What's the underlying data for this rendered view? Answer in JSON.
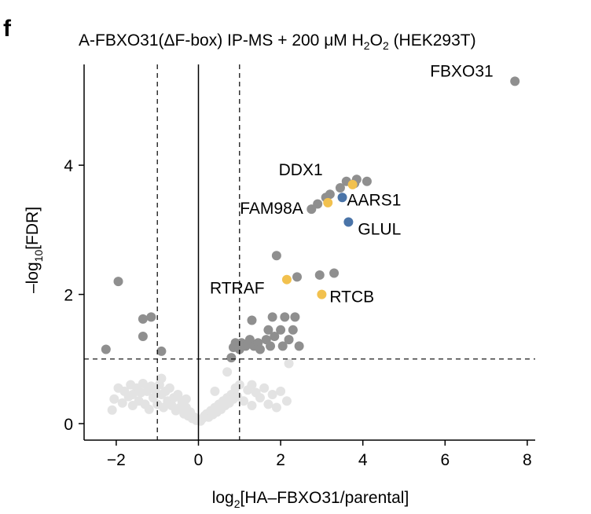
{
  "panel_label": "f",
  "title_parts": {
    "a": "A-FBXO31(ΔF-box) IP-MS + 200 μM H",
    "sub": "2",
    "b": "O",
    "sub2": "2",
    "c": " (HEK293T)"
  },
  "axes": {
    "xlabel_pre": "log",
    "xlabel_sub": "2",
    "xlabel_post": "[HA–FBXO31/parental]",
    "ylabel_pre": "–log",
    "ylabel_sub": "10",
    "ylabel_post": "[FDR]",
    "xticks": [
      "−2",
      "0",
      "2",
      "4",
      "6",
      "8"
    ],
    "yticks": [
      "0",
      "2",
      "4"
    ]
  },
  "colors": {
    "significant": "#8f8f8f",
    "nonsignificant": "#e3e3e3",
    "yellow": "#f2c14e",
    "blue": "#4a74a8"
  },
  "chart_data": {
    "type": "scatter",
    "xlim": [
      -2.8,
      8.2
    ],
    "ylim": [
      -0.1,
      5.7
    ],
    "threshold_lines": {
      "x": [
        -1,
        1
      ],
      "y": 1,
      "x_zero": 0
    },
    "grid": false,
    "nonsignificant": [
      [
        -2.1,
        0.21
      ],
      [
        -2.05,
        0.38
      ],
      [
        -1.95,
        0.55
      ],
      [
        -1.85,
        0.32
      ],
      [
        -1.8,
        0.5
      ],
      [
        -1.7,
        0.42
      ],
      [
        -1.65,
        0.6
      ],
      [
        -1.6,
        0.28
      ],
      [
        -1.5,
        0.55
      ],
      [
        -1.45,
        0.35
      ],
      [
        -1.4,
        0.48
      ],
      [
        -1.35,
        0.62
      ],
      [
        -1.3,
        0.3
      ],
      [
        -1.25,
        0.5
      ],
      [
        -1.2,
        0.22
      ],
      [
        -1.15,
        0.58
      ],
      [
        -1.1,
        0.4
      ],
      [
        -1.05,
        0.52
      ],
      [
        -1.0,
        0.3
      ],
      [
        -0.95,
        0.6
      ],
      [
        -0.9,
        0.45
      ],
      [
        -0.85,
        0.25
      ],
      [
        -0.8,
        0.5
      ],
      [
        -0.75,
        0.35
      ],
      [
        -0.7,
        0.55
      ],
      [
        -0.65,
        0.28
      ],
      [
        -0.6,
        0.4
      ],
      [
        -0.55,
        0.2
      ],
      [
        -0.5,
        0.45
      ],
      [
        -0.45,
        0.25
      ],
      [
        -0.4,
        0.35
      ],
      [
        -0.35,
        0.15
      ],
      [
        -0.3,
        0.25
      ],
      [
        -0.25,
        0.12
      ],
      [
        -0.2,
        0.18
      ],
      [
        -0.15,
        0.08
      ],
      [
        -0.1,
        0.1
      ],
      [
        -0.05,
        0.05
      ],
      [
        0.05,
        0.04
      ],
      [
        0.1,
        0.08
      ],
      [
        0.15,
        0.12
      ],
      [
        0.2,
        0.15
      ],
      [
        0.25,
        0.1
      ],
      [
        0.3,
        0.2
      ],
      [
        0.35,
        0.14
      ],
      [
        0.4,
        0.25
      ],
      [
        0.45,
        0.18
      ],
      [
        0.5,
        0.3
      ],
      [
        0.55,
        0.22
      ],
      [
        0.6,
        0.35
      ],
      [
        0.65,
        0.28
      ],
      [
        0.7,
        0.4
      ],
      [
        0.75,
        0.32
      ],
      [
        0.8,
        0.45
      ],
      [
        0.85,
        0.38
      ],
      [
        0.9,
        0.55
      ],
      [
        0.95,
        0.42
      ],
      [
        1.0,
        0.6
      ],
      [
        1.1,
        0.35
      ],
      [
        1.2,
        0.52
      ],
      [
        1.3,
        0.28
      ],
      [
        1.4,
        0.48
      ],
      [
        1.5,
        0.4
      ],
      [
        1.6,
        0.55
      ],
      [
        1.7,
        0.3
      ],
      [
        1.8,
        0.45
      ],
      [
        1.9,
        0.25
      ],
      [
        2.0,
        0.5
      ],
      [
        2.15,
        0.35
      ],
      [
        2.2,
        0.93
      ],
      [
        0.7,
        0.8
      ],
      [
        -0.9,
        0.7
      ],
      [
        -1.6,
        0.45
      ],
      [
        1.3,
        0.6
      ],
      [
        -0.3,
        0.38
      ],
      [
        0.4,
        0.5
      ]
    ],
    "significant": [
      [
        -2.25,
        1.15
      ],
      [
        -1.95,
        2.2
      ],
      [
        -1.35,
        1.62
      ],
      [
        -1.15,
        1.65
      ],
      [
        -1.35,
        1.35
      ],
      [
        -0.9,
        1.12
      ],
      [
        0.8,
        1.02
      ],
      [
        0.85,
        1.18
      ],
      [
        0.9,
        1.25
      ],
      [
        1.0,
        1.15
      ],
      [
        1.05,
        1.25
      ],
      [
        1.15,
        1.2
      ],
      [
        1.25,
        1.3
      ],
      [
        1.3,
        1.6
      ],
      [
        1.35,
        1.2
      ],
      [
        1.45,
        1.25
      ],
      [
        1.5,
        1.15
      ],
      [
        1.65,
        1.3
      ],
      [
        1.7,
        1.45
      ],
      [
        1.75,
        1.2
      ],
      [
        1.8,
        1.65
      ],
      [
        1.85,
        1.35
      ],
      [
        1.9,
        2.6
      ],
      [
        2.0,
        1.45
      ],
      [
        2.05,
        1.2
      ],
      [
        2.1,
        1.65
      ],
      [
        2.2,
        1.3
      ],
      [
        2.3,
        1.45
      ],
      [
        2.35,
        1.65
      ],
      [
        2.4,
        2.27
      ],
      [
        2.45,
        1.2
      ],
      [
        2.95,
        2.3
      ],
      [
        3.3,
        2.33
      ],
      [
        2.75,
        3.32
      ],
      [
        2.9,
        3.4
      ],
      [
        3.1,
        3.5
      ],
      [
        3.2,
        3.55
      ],
      [
        3.45,
        3.65
      ],
      [
        3.6,
        3.75
      ],
      [
        3.8,
        3.72
      ],
      [
        3.85,
        3.78
      ],
      [
        4.1,
        3.75
      ]
    ],
    "highlighted": [
      {
        "label": "FBXO31",
        "x": 7.7,
        "y": 5.3,
        "color": "significant"
      },
      {
        "label": "DDX1",
        "x": 3.75,
        "y": 3.7,
        "color": "yellow"
      },
      {
        "label": "AARS1",
        "x": 3.5,
        "y": 3.5,
        "color": "blue"
      },
      {
        "label": "FAM98A",
        "x": 3.15,
        "y": 3.42,
        "color": "yellow"
      },
      {
        "label": "GLUL",
        "x": 3.65,
        "y": 3.12,
        "color": "blue"
      },
      {
        "label": "RTRAF",
        "x": 2.15,
        "y": 2.23,
        "color": "yellow"
      },
      {
        "label": "RTCB",
        "x": 3.0,
        "y": 2.0,
        "color": "yellow"
      }
    ]
  }
}
